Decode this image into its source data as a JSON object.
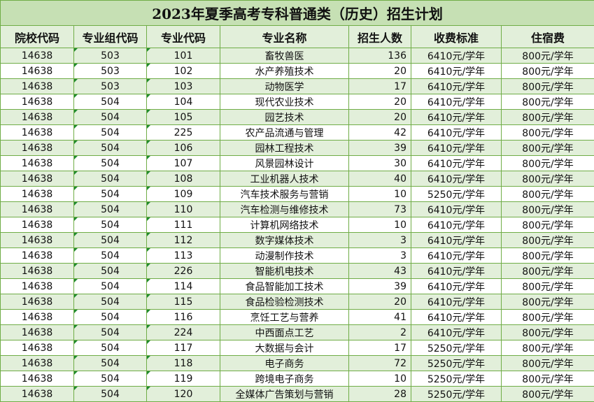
{
  "title": "2023年夏季高考专科普通类（历史）招生计划",
  "columns": [
    "院校代码",
    "专业组代码",
    "专业代码",
    "专业名称",
    "招生人数",
    "收费标准",
    "住宿费"
  ],
  "rows": [
    [
      "14638",
      "503",
      "101",
      "畜牧兽医",
      "136",
      "6410元/学年",
      "800元/学年"
    ],
    [
      "14638",
      "503",
      "102",
      "水产养殖技术",
      "20",
      "6410元/学年",
      "800元/学年"
    ],
    [
      "14638",
      "503",
      "103",
      "动物医学",
      "17",
      "6410元/学年",
      "800元/学年"
    ],
    [
      "14638",
      "504",
      "104",
      "现代农业技术",
      "20",
      "6410元/学年",
      "800元/学年"
    ],
    [
      "14638",
      "504",
      "105",
      "园艺技术",
      "20",
      "6410元/学年",
      "800元/学年"
    ],
    [
      "14638",
      "504",
      "225",
      "农产品流通与管理",
      "42",
      "6410元/学年",
      "800元/学年"
    ],
    [
      "14638",
      "504",
      "106",
      "园林工程技术",
      "39",
      "6410元/学年",
      "800元/学年"
    ],
    [
      "14638",
      "504",
      "107",
      "风景园林设计",
      "30",
      "6410元/学年",
      "800元/学年"
    ],
    [
      "14638",
      "504",
      "108",
      "工业机器人技术",
      "40",
      "6410元/学年",
      "800元/学年"
    ],
    [
      "14638",
      "504",
      "109",
      "汽车技术服务与营销",
      "10",
      "5250元/学年",
      "800元/学年"
    ],
    [
      "14638",
      "504",
      "110",
      "汽车检测与维修技术",
      "73",
      "6410元/学年",
      "800元/学年"
    ],
    [
      "14638",
      "504",
      "111",
      "计算机网络技术",
      "10",
      "6410元/学年",
      "800元/学年"
    ],
    [
      "14638",
      "504",
      "112",
      "数字媒体技术",
      "3",
      "6410元/学年",
      "800元/学年"
    ],
    [
      "14638",
      "504",
      "113",
      "动漫制作技术",
      "3",
      "6410元/学年",
      "800元/学年"
    ],
    [
      "14638",
      "504",
      "226",
      "智能机电技术",
      "43",
      "6410元/学年",
      "800元/学年"
    ],
    [
      "14638",
      "504",
      "114",
      "食品智能加工技术",
      "39",
      "6410元/学年",
      "800元/学年"
    ],
    [
      "14638",
      "504",
      "115",
      "食品检验检测技术",
      "20",
      "6410元/学年",
      "800元/学年"
    ],
    [
      "14638",
      "504",
      "116",
      "烹饪工艺与营养",
      "41",
      "6410元/学年",
      "800元/学年"
    ],
    [
      "14638",
      "504",
      "224",
      "中西面点工艺",
      "2",
      "6410元/学年",
      "800元/学年"
    ],
    [
      "14638",
      "504",
      "117",
      "大数据与会计",
      "17",
      "5250元/学年",
      "800元/学年"
    ],
    [
      "14638",
      "504",
      "118",
      "电子商务",
      "72",
      "5250元/学年",
      "800元/学年"
    ],
    [
      "14638",
      "504",
      "119",
      "跨境电子商务",
      "10",
      "5250元/学年",
      "800元/学年"
    ],
    [
      "14638",
      "504",
      "120",
      "全媒体广告策划与营销",
      "28",
      "5250元/学年",
      "800元/学年"
    ]
  ],
  "colors": {
    "border": "#70ad47",
    "title_bg": "#c6e0b4",
    "stripe_bg": "#e2efda"
  }
}
